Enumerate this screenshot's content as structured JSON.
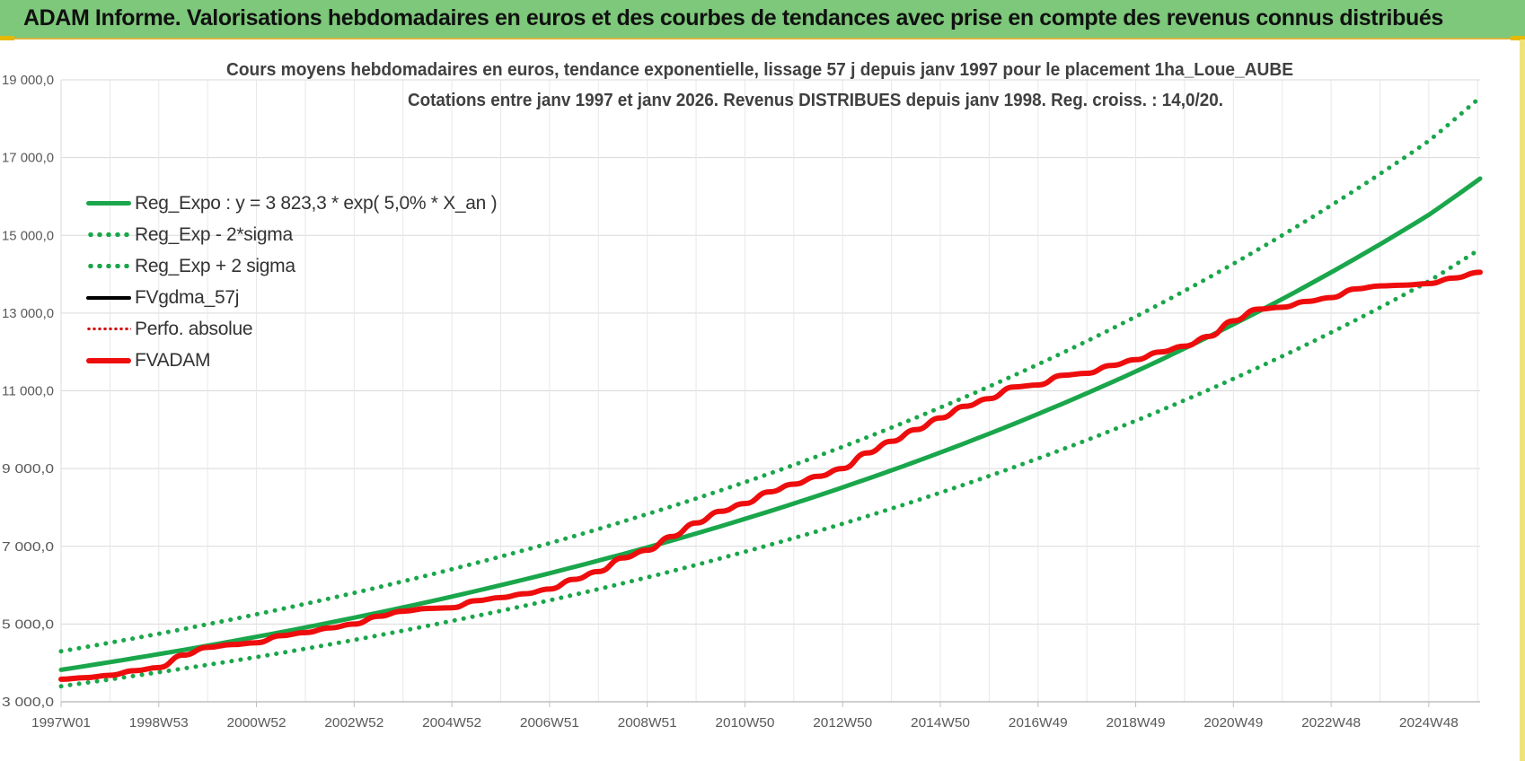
{
  "header": {
    "title": "ADAM Informe. Valorisations hebdomadaires en euros et des courbes de tendances avec prise en compte des revenus connus distribués"
  },
  "colors": {
    "header_bg": "#7dc87a",
    "trend_green": "#1aa64b",
    "fvadam_red": "#ee0d0d",
    "fvgdma_black": "#000000",
    "perfo_red": "#d40000",
    "grid": "#d9d9d9"
  },
  "chart_data": {
    "type": "line",
    "title": "Cours moyens  hebdomadaires en euros, tendance exponentielle, lissage 57 j depuis janv 1997 pour le placement 1ha_Loue_AUBE",
    "subtitle": "Cotations entre janv 1997 et janv 2026. Revenus DISTRIBUES depuis janv 1998. Reg. croiss. : 14,0/20.",
    "xlabel": "",
    "ylabel": "",
    "ylim": [
      3000,
      19000
    ],
    "xlim": [
      1997.0,
      2026.05
    ],
    "grid": true,
    "legend_position": "top-left",
    "y_ticks": [
      {
        "value": 3000,
        "label": "3 000,0"
      },
      {
        "value": 5000,
        "label": "5 000,0"
      },
      {
        "value": 7000,
        "label": "7 000,0"
      },
      {
        "value": 9000,
        "label": "9 000,0"
      },
      {
        "value": 11000,
        "label": "11 000,0"
      },
      {
        "value": 13000,
        "label": "13 000,0"
      },
      {
        "value": 15000,
        "label": "15 000,0"
      },
      {
        "value": 17000,
        "label": "17 000,0"
      },
      {
        "value": 19000,
        "label": "19 000,0"
      }
    ],
    "x_ticks": [
      {
        "value": 1997.0,
        "label": "1997W01"
      },
      {
        "value": 1999.0,
        "label": "1998W53"
      },
      {
        "value": 2001.0,
        "label": "2000W52"
      },
      {
        "value": 2003.0,
        "label": "2002W52"
      },
      {
        "value": 2005.0,
        "label": "2004W52"
      },
      {
        "value": 2007.0,
        "label": "2006W51"
      },
      {
        "value": 2009.0,
        "label": "2008W51"
      },
      {
        "value": 2011.0,
        "label": "2010W50"
      },
      {
        "value": 2013.0,
        "label": "2012W50"
      },
      {
        "value": 2015.0,
        "label": "2014W50"
      },
      {
        "value": 2017.0,
        "label": "2016W49"
      },
      {
        "value": 2019.0,
        "label": "2018W49"
      },
      {
        "value": 2021.0,
        "label": "2020W49"
      },
      {
        "value": 2023.0,
        "label": "2022W48"
      },
      {
        "value": 2025.0,
        "label": "2024W48"
      }
    ],
    "series": [
      {
        "name": "Reg_Expo : y = 3 823,3 * exp( 5,0% *  X_an )",
        "style": "solid",
        "color": "#1aa64b",
        "width": 5,
        "x": [
          1997,
          1999,
          2001,
          2003,
          2005,
          2007,
          2009,
          2011,
          2013,
          2015,
          2017,
          2019,
          2021,
          2023,
          2025,
          2026.05
        ],
        "values": [
          3823,
          4226,
          4671,
          5163,
          5706,
          6307,
          6971,
          7705,
          8516,
          9413,
          10404,
          11499,
          12710,
          14048,
          15527,
          16460
        ]
      },
      {
        "name": "Reg_Exp - 2*sigma",
        "style": "dotted",
        "color": "#1aa64b",
        "width": 5,
        "x": [
          1997,
          1999,
          2001,
          2003,
          2005,
          2007,
          2009,
          2011,
          2013,
          2015,
          2017,
          2019,
          2021,
          2023,
          2025,
          2026.05
        ],
        "values": [
          3400,
          3760,
          4150,
          4590,
          5080,
          5610,
          6200,
          6860,
          7580,
          8380,
          9260,
          10230,
          11310,
          12500,
          13820,
          14650
        ]
      },
      {
        "name": "Reg_Exp + 2 sigma",
        "style": "dotted",
        "color": "#1aa64b",
        "width": 5,
        "x": [
          1997,
          1999,
          2001,
          2003,
          2005,
          2007,
          2009,
          2011,
          2013,
          2015,
          2017,
          2019,
          2021,
          2023,
          2025,
          2026.05
        ],
        "values": [
          4300,
          4750,
          5250,
          5800,
          6410,
          7080,
          7830,
          8650,
          9560,
          10570,
          11680,
          12910,
          14270,
          15770,
          17430,
          18550
        ]
      },
      {
        "name": "FVgdma_57j",
        "style": "solid",
        "color": "#000000",
        "width": 4,
        "x": [
          1997,
          1997.5,
          1998,
          1998.5,
          1999,
          1999.5,
          2000,
          2000.5,
          2001,
          2001.5,
          2002,
          2002.5,
          2003,
          2003.5,
          2004,
          2004.5,
          2005,
          2005.5,
          2006,
          2006.5,
          2007,
          2007.5,
          2008,
          2008.5,
          2009,
          2009.5,
          2010,
          2010.5,
          2011,
          2011.5,
          2012,
          2012.5,
          2013,
          2013.5,
          2014,
          2014.5,
          2015,
          2015.5,
          2016,
          2016.5,
          2017,
          2017.5,
          2018,
          2018.5,
          2019,
          2019.5,
          2020,
          2020.5,
          2021,
          2021.5,
          2022,
          2022.5,
          2023,
          2023.5,
          2024,
          2024.5,
          2025,
          2025.5,
          2026.05
        ],
        "values": [
          3580,
          3620,
          3680,
          3800,
          3880,
          4200,
          4400,
          4470,
          4520,
          4700,
          4780,
          4900,
          5000,
          5200,
          5330,
          5400,
          5420,
          5600,
          5680,
          5780,
          5900,
          6150,
          6350,
          6700,
          6900,
          7250,
          7600,
          7900,
          8100,
          8400,
          8600,
          8800,
          9000,
          9400,
          9700,
          10000,
          10300,
          10600,
          10800,
          11100,
          11150,
          11400,
          11450,
          11650,
          11800,
          12000,
          12150,
          12400,
          12800,
          13100,
          13150,
          13300,
          13400,
          13620,
          13700,
          13720,
          13760,
          13900,
          14050
        ]
      },
      {
        "name": "Perfo. absolue",
        "style": "dotted",
        "color": "#d40000",
        "width": 2,
        "x": [
          1997,
          1997.5,
          1998,
          1998.5,
          1999,
          1999.5,
          2000,
          2000.5,
          2001,
          2001.5,
          2002,
          2002.5,
          2003,
          2003.5,
          2004,
          2004.5,
          2005,
          2005.5,
          2006,
          2006.5,
          2007,
          2007.5,
          2008,
          2008.5,
          2009,
          2009.5,
          2010,
          2010.5,
          2011,
          2011.5,
          2012,
          2012.5,
          2013,
          2013.5,
          2014,
          2014.5,
          2015,
          2015.5,
          2016,
          2016.5,
          2017,
          2017.5,
          2018,
          2018.5,
          2019,
          2019.5,
          2020,
          2020.5,
          2021,
          2021.5,
          2022,
          2022.5,
          2023,
          2023.5,
          2024,
          2024.5,
          2025,
          2025.5,
          2026.05
        ],
        "values": [
          3580,
          3620,
          3680,
          3800,
          3880,
          4200,
          4400,
          4470,
          4520,
          4700,
          4780,
          4900,
          5000,
          5200,
          5330,
          5400,
          5420,
          5600,
          5680,
          5780,
          5900,
          6150,
          6350,
          6700,
          6900,
          7250,
          7600,
          7900,
          8100,
          8400,
          8600,
          8800,
          9000,
          9400,
          9700,
          10000,
          10300,
          10600,
          10800,
          11100,
          11150,
          11400,
          11450,
          11650,
          11800,
          12000,
          12150,
          12400,
          12800,
          13100,
          13150,
          13300,
          13400,
          13620,
          13700,
          13720,
          13760,
          13900,
          14050
        ]
      },
      {
        "name": "FVADAM",
        "style": "solid",
        "color": "#ee0d0d",
        "width": 6,
        "x": [
          1997,
          1997.5,
          1998,
          1998.5,
          1999,
          1999.5,
          2000,
          2000.5,
          2001,
          2001.5,
          2002,
          2002.5,
          2003,
          2003.5,
          2004,
          2004.5,
          2005,
          2005.5,
          2006,
          2006.5,
          2007,
          2007.5,
          2008,
          2008.5,
          2009,
          2009.5,
          2010,
          2010.5,
          2011,
          2011.5,
          2012,
          2012.5,
          2013,
          2013.5,
          2014,
          2014.5,
          2015,
          2015.5,
          2016,
          2016.5,
          2017,
          2017.5,
          2018,
          2018.5,
          2019,
          2019.5,
          2020,
          2020.5,
          2021,
          2021.5,
          2022,
          2022.5,
          2023,
          2023.5,
          2024,
          2024.5,
          2025,
          2025.5,
          2026.05
        ],
        "values": [
          3580,
          3620,
          3680,
          3800,
          3880,
          4200,
          4400,
          4470,
          4520,
          4700,
          4780,
          4900,
          5000,
          5200,
          5330,
          5400,
          5420,
          5600,
          5680,
          5780,
          5900,
          6150,
          6350,
          6700,
          6900,
          7250,
          7600,
          7900,
          8100,
          8400,
          8600,
          8800,
          9000,
          9400,
          9700,
          10000,
          10300,
          10600,
          10800,
          11100,
          11150,
          11400,
          11450,
          11650,
          11800,
          12000,
          12150,
          12400,
          12800,
          13100,
          13150,
          13300,
          13400,
          13620,
          13700,
          13720,
          13760,
          13900,
          14050
        ]
      }
    ]
  }
}
